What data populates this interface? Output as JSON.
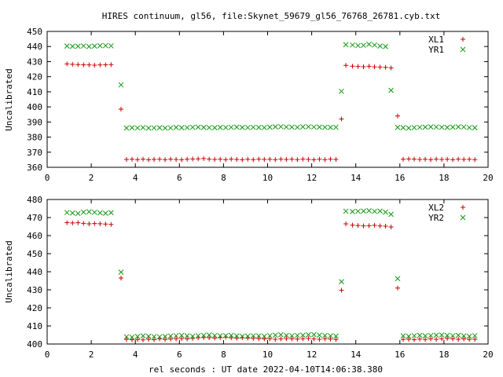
{
  "title": "HIRES continuum, gl56, file:Skynet_59679_gl56_76768_26781.cyb.txt",
  "xlabel": "rel seconds : UT date 2022-04-10T14:06:38.380",
  "colors": {
    "series_a": "#cc0000",
    "series_b": "#109910",
    "axis": "#000000"
  },
  "chart_data": [
    {
      "type": "scatter",
      "xlim": [
        0,
        20
      ],
      "ylim": [
        360,
        450
      ],
      "xticks": [
        0,
        2,
        4,
        6,
        8,
        10,
        12,
        14,
        16,
        18,
        20
      ],
      "yticks": [
        360,
        370,
        380,
        390,
        400,
        410,
        420,
        430,
        440,
        450
      ],
      "ylabel": "Uncalibrated",
      "legend_position": "top-right",
      "grid": false,
      "x": [
        0.9,
        1.15,
        1.4,
        1.65,
        1.9,
        2.15,
        2.4,
        2.65,
        2.9,
        3.35,
        3.6,
        3.85,
        4.1,
        4.35,
        4.6,
        4.85,
        5.1,
        5.35,
        5.6,
        5.85,
        6.1,
        6.35,
        6.6,
        6.85,
        7.1,
        7.35,
        7.6,
        7.85,
        8.1,
        8.35,
        8.6,
        8.85,
        9.1,
        9.35,
        9.6,
        9.85,
        10.1,
        10.35,
        10.6,
        10.85,
        11.1,
        11.35,
        11.6,
        11.85,
        12.1,
        12.35,
        12.6,
        12.85,
        13.1,
        13.35,
        13.55,
        13.85,
        14.1,
        14.35,
        14.6,
        14.85,
        15.1,
        15.35,
        15.6,
        15.9,
        16.15,
        16.4,
        16.65,
        16.9,
        17.15,
        17.4,
        17.65,
        17.9,
        18.15,
        18.4,
        18.65,
        18.9,
        19.15,
        19.4
      ],
      "series": [
        {
          "name": "XL1",
          "marker": "+",
          "values": [
            428.5,
            428.2,
            428.0,
            427.9,
            427.8,
            427.6,
            427.8,
            427.9,
            428.0,
            398.5,
            365.2,
            365.3,
            365.1,
            365.4,
            365.0,
            365.2,
            365.3,
            365.1,
            365.4,
            365.2,
            365.0,
            365.3,
            365.5,
            365.6,
            365.8,
            365.4,
            365.2,
            365.3,
            365.1,
            365.4,
            365.2,
            365.0,
            365.3,
            365.1,
            365.4,
            365.2,
            365.3,
            365.1,
            365.4,
            365.2,
            365.3,
            365.1,
            365.4,
            365.2,
            365.0,
            365.3,
            365.1,
            365.4,
            365.2,
            392.0,
            427.5,
            427.0,
            426.8,
            426.6,
            426.9,
            426.5,
            426.4,
            426.2,
            425.8,
            394.0,
            365.3,
            365.5,
            365.4,
            365.2,
            365.3,
            365.1,
            365.4,
            365.2,
            365.3,
            365.1,
            365.4,
            365.2,
            365.3,
            365.1
          ]
        },
        {
          "name": "YR1",
          "marker": "x",
          "values": [
            440.3,
            440.1,
            440.2,
            440.4,
            440.0,
            440.3,
            440.5,
            440.6,
            440.4,
            414.6,
            386.0,
            386.2,
            386.1,
            386.3,
            386.0,
            386.1,
            386.2,
            386.0,
            386.1,
            386.4,
            386.2,
            386.3,
            386.5,
            386.6,
            386.4,
            386.3,
            386.2,
            386.4,
            386.3,
            386.5,
            386.6,
            386.4,
            386.3,
            386.5,
            386.4,
            386.3,
            386.6,
            386.8,
            386.9,
            386.7,
            386.6,
            386.5,
            386.8,
            386.9,
            386.7,
            386.6,
            386.5,
            386.4,
            386.5,
            410.3,
            441.2,
            441.0,
            440.6,
            440.8,
            441.5,
            441.0,
            440.3,
            440.0,
            411.0,
            386.4,
            386.2,
            386.0,
            386.3,
            386.5,
            386.6,
            386.8,
            386.7,
            386.5,
            386.4,
            386.6,
            386.8,
            386.7,
            386.3,
            386.2
          ]
        }
      ]
    },
    {
      "type": "scatter",
      "xlim": [
        0,
        20
      ],
      "ylim": [
        400,
        480
      ],
      "xticks": [
        0,
        2,
        4,
        6,
        8,
        10,
        12,
        14,
        16,
        18,
        20
      ],
      "yticks": [
        400,
        410,
        420,
        430,
        440,
        450,
        460,
        470,
        480
      ],
      "ylabel": "Uncalibrated",
      "legend_position": "top-right",
      "grid": false,
      "x": [
        0.9,
        1.15,
        1.4,
        1.65,
        1.9,
        2.15,
        2.4,
        2.65,
        2.9,
        3.35,
        3.6,
        3.85,
        4.1,
        4.35,
        4.6,
        4.85,
        5.1,
        5.35,
        5.6,
        5.85,
        6.1,
        6.35,
        6.6,
        6.85,
        7.1,
        7.35,
        7.6,
        7.85,
        8.1,
        8.35,
        8.6,
        8.85,
        9.1,
        9.35,
        9.6,
        9.85,
        10.1,
        10.35,
        10.6,
        10.85,
        11.1,
        11.35,
        11.6,
        11.85,
        12.1,
        12.35,
        12.6,
        12.85,
        13.1,
        13.35,
        13.55,
        13.85,
        14.1,
        14.35,
        14.6,
        14.85,
        15.1,
        15.35,
        15.6,
        15.9,
        16.15,
        16.4,
        16.65,
        16.9,
        17.15,
        17.4,
        17.65,
        17.9,
        18.15,
        18.4,
        18.65,
        18.9,
        19.15,
        19.4
      ],
      "series": [
        {
          "name": "XL2",
          "marker": "+",
          "values": [
            467.2,
            467.0,
            467.1,
            466.8,
            466.5,
            466.7,
            466.6,
            466.4,
            466.2,
            436.5,
            402.6,
            402.4,
            402.5,
            402.3,
            402.6,
            402.4,
            402.8,
            402.5,
            402.7,
            402.9,
            403.0,
            402.8,
            403.1,
            403.4,
            403.6,
            403.5,
            403.3,
            403.6,
            403.8,
            403.4,
            403.2,
            403.5,
            403.3,
            403.1,
            403.0,
            402.8,
            402.9,
            402.6,
            402.8,
            403.0,
            402.9,
            402.7,
            402.9,
            403.1,
            402.8,
            402.6,
            402.9,
            402.7,
            402.5,
            429.8,
            466.5,
            465.8,
            465.6,
            465.4,
            465.5,
            465.7,
            465.4,
            465.2,
            464.8,
            431.0,
            402.5,
            402.6,
            402.4,
            402.7,
            402.5,
            402.8,
            402.6,
            402.9,
            403.1,
            402.8,
            402.6,
            402.8,
            402.5,
            402.6
          ]
        },
        {
          "name": "YR2",
          "marker": "x",
          "values": [
            472.8,
            472.5,
            472.3,
            473.0,
            473.2,
            472.9,
            472.6,
            472.4,
            472.7,
            439.8,
            404.0,
            403.8,
            404.2,
            404.5,
            404.3,
            404.1,
            404.0,
            404.2,
            404.4,
            404.6,
            404.8,
            404.5,
            404.3,
            404.6,
            404.8,
            405.0,
            404.7,
            404.5,
            404.6,
            404.8,
            404.5,
            404.3,
            404.4,
            404.6,
            404.5,
            404.3,
            404.6,
            404.9,
            405.1,
            404.8,
            404.6,
            404.7,
            404.9,
            405.1,
            405.2,
            404.9,
            404.7,
            404.5,
            404.4,
            434.5,
            473.5,
            473.3,
            473.5,
            473.6,
            473.8,
            473.4,
            473.6,
            473.0,
            471.8,
            436.2,
            404.5,
            404.3,
            404.6,
            404.8,
            404.5,
            404.7,
            404.9,
            405.0,
            404.8,
            404.6,
            404.8,
            404.5,
            404.3,
            404.6
          ]
        }
      ]
    }
  ]
}
